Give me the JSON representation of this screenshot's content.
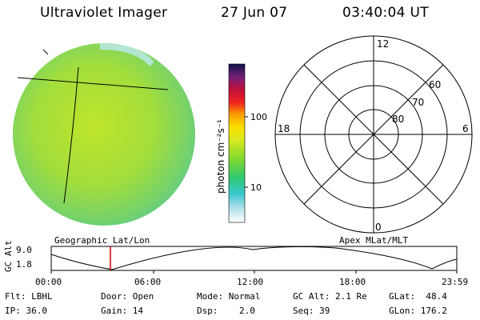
{
  "header": {
    "title": "Ultraviolet Imager",
    "date": "27 Jun 07",
    "time": "03:40:04 UT"
  },
  "colorbar": {
    "label": "photon cm⁻²s⁻¹",
    "ticks": [
      "100",
      "10"
    ]
  },
  "polar": {
    "mlt_labels": {
      "top": "12",
      "left": "18",
      "right": "6",
      "bottom": "0"
    },
    "lat_labels": [
      "60",
      "70",
      "80"
    ]
  },
  "orbit": {
    "left_title": "Geographic Lat/Lon",
    "right_title": "Apex MLat/MLT",
    "axis_label": "GC Alt",
    "y_ticks": [
      "9.0",
      "1.8"
    ],
    "x_ticks": [
      "00:00",
      "06:00",
      "12:00",
      "18:00",
      "23:59"
    ]
  },
  "info": {
    "row1": [
      {
        "k": "Flt:",
        "v": "LBHL"
      },
      {
        "k": "Door:",
        "v": "Open"
      },
      {
        "k": "Mode:",
        "v": "Normal"
      },
      {
        "k": "GC Alt:",
        "v": "2.1 Re"
      },
      {
        "k": "GLat:",
        "v": "48.4"
      }
    ],
    "row2": [
      {
        "k": "IP:",
        "v": "36.0"
      },
      {
        "k": "Gain:",
        "v": "14"
      },
      {
        "k": "Dsp:",
        "v": "2.0"
      },
      {
        "k": "Seq:",
        "v": "39"
      },
      {
        "k": "GLon:",
        "v": "176.2"
      }
    ]
  },
  "colors": {
    "disk_main": "#b4e42a",
    "disk_edge": "#7ad45a",
    "marker": "#cc0000"
  }
}
